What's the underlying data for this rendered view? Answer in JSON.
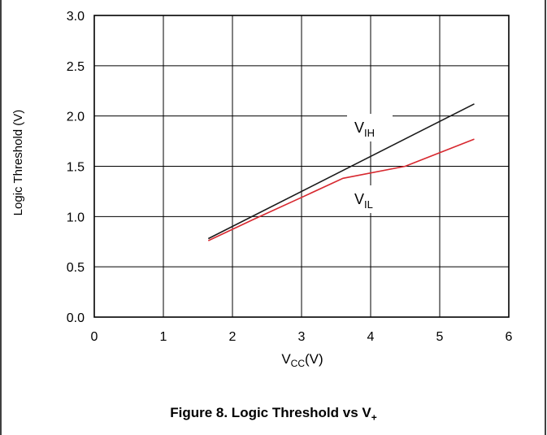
{
  "chart_data": {
    "type": "line",
    "xlabel": {
      "main": "V",
      "sub": "CC",
      "rest": "(V)"
    },
    "ylabel": "Logic Threshold (V)",
    "xlim": [
      0,
      6
    ],
    "ylim": [
      0.0,
      3.0
    ],
    "x_ticks": [
      "0",
      "1",
      "2",
      "3",
      "4",
      "5",
      "6"
    ],
    "y_ticks": [
      "0.0",
      "0.5",
      "1.0",
      "1.5",
      "2.0",
      "2.5",
      "3.0"
    ],
    "grid": true,
    "series": [
      {
        "name": "V_IH",
        "label_main": "V",
        "label_sub": "IH",
        "color": "#1a1a1a",
        "x": [
          1.65,
          5.5
        ],
        "y": [
          0.78,
          2.12
        ]
      },
      {
        "name": "V_IL",
        "label_main": "V",
        "label_sub": "IL",
        "color": "#d7282f",
        "x": [
          1.65,
          2.3,
          3.0,
          3.6,
          4.5,
          5.5
        ],
        "y": [
          0.76,
          0.97,
          1.19,
          1.38,
          1.5,
          1.77
        ]
      }
    ]
  },
  "caption": {
    "main": "Figure 8. Logic Threshold vs V",
    "sub": "+"
  }
}
